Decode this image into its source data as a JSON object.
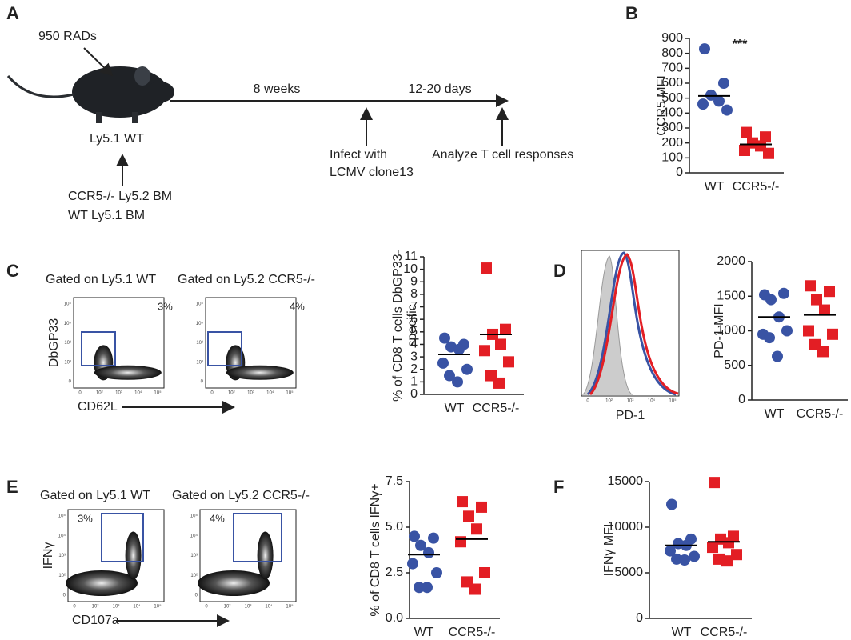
{
  "panel_labels": [
    "A",
    "B",
    "C",
    "D",
    "E",
    "F"
  ],
  "diagram": {
    "rads": "950 RADs",
    "host": "Ly5.1 WT",
    "bone_marrow": [
      "CCR5-/- Ly5.2 BM",
      "WT Ly5.1 BM"
    ],
    "interval1": "8 weeks",
    "interval2": "12-20 days",
    "infect": [
      "Infect with",
      "LCMV clone13"
    ],
    "analyze": "Analyze T cell responses"
  },
  "flow": {
    "ticks": [
      "0",
      "10²",
      "10³",
      "10⁴",
      "10⁵"
    ],
    "C": {
      "gates": [
        "Gated on Ly5.1 WT",
        "Gated on Ly5.2 CCR5-/-"
      ],
      "percents": [
        "3%",
        "4%"
      ],
      "y_label": "DbGP33",
      "x_label": "CD62L"
    },
    "D": {
      "x_label": "PD-1"
    },
    "E": {
      "gates": [
        "Gated on Ly5.1 WT",
        "Gated on Ly5.2 CCR5-/-"
      ],
      "percents": [
        "3%",
        "4%"
      ],
      "y_label": "IFNγ",
      "x_label": "CD107a"
    }
  },
  "chart_data": [
    {
      "type": "dot",
      "y_label": [
        "CCR5 MFI"
      ],
      "annotation": "***",
      "categories": [
        "WT",
        "CCR5-/-"
      ],
      "groups": [
        {
          "color": "#3953a4",
          "marker": "circle",
          "values": [
            830,
            600,
            520,
            480,
            460,
            420
          ],
          "mean": 515
        },
        {
          "color": "#e31e24",
          "marker": "square",
          "values": [
            270,
            240,
            200,
            180,
            150,
            130
          ],
          "mean": 190
        }
      ],
      "ylim": [
        0,
        900
      ],
      "yticks": [
        0,
        100,
        200,
        300,
        400,
        500,
        600,
        700,
        800,
        900
      ]
    },
    {
      "type": "dot",
      "y_label": [
        "% of CD8 T cells DbGP33-",
        "specific"
      ],
      "categories": [
        "WT",
        "CCR5-/-"
      ],
      "groups": [
        {
          "color": "#3953a4",
          "marker": "circle",
          "values": [
            4.5,
            4.0,
            3.8,
            3.6,
            2.5,
            2.0,
            1.5,
            1.0
          ],
          "mean": 3.2
        },
        {
          "color": "#e31e24",
          "marker": "square",
          "values": [
            10.1,
            5.2,
            4.8,
            4.0,
            3.5,
            2.6,
            1.5,
            0.9
          ],
          "mean": 4.8
        }
      ],
      "ylim": [
        0,
        11
      ],
      "yticks": [
        0,
        1,
        2,
        3,
        4,
        5,
        6,
        7,
        8,
        9,
        10,
        11
      ]
    },
    {
      "type": "dot",
      "y_label": [
        "PD-1 MFI"
      ],
      "categories": [
        "WT",
        "CCR5-/-"
      ],
      "groups": [
        {
          "color": "#3953a4",
          "marker": "circle",
          "values": [
            1520,
            1540,
            1450,
            1200,
            950,
            1000,
            900,
            630
          ],
          "mean": 1200
        },
        {
          "color": "#e31e24",
          "marker": "square",
          "values": [
            1650,
            1570,
            1450,
            1300,
            1000,
            950,
            800,
            700
          ],
          "mean": 1230
        }
      ],
      "ylim": [
        0,
        2000
      ],
      "yticks": [
        0,
        500,
        1000,
        1500,
        2000
      ]
    },
    {
      "type": "dot",
      "y_label": [
        "% of CD8 T cells IFNγ+"
      ],
      "categories": [
        "WT",
        "CCR5-/-"
      ],
      "groups": [
        {
          "color": "#3953a4",
          "marker": "circle",
          "values": [
            4.5,
            4.4,
            4.0,
            3.6,
            3.0,
            2.5,
            1.7,
            1.7
          ],
          "mean": 3.5
        },
        {
          "color": "#e31e24",
          "marker": "square",
          "values": [
            6.4,
            6.1,
            5.6,
            4.9,
            4.2,
            2.5,
            2.0,
            1.6
          ],
          "mean": 4.35
        }
      ],
      "ylim": [
        0,
        7.5
      ],
      "yticks": [
        {
          "value": 0,
          "label": "0.0"
        },
        2.5,
        {
          "value": 5,
          "label": "5.0"
        },
        7.5
      ]
    },
    {
      "type": "dot",
      "y_label": [
        "IFNγ MFI"
      ],
      "categories": [
        "WT",
        "CCR5-/-"
      ],
      "groups": [
        {
          "color": "#3953a4",
          "marker": "circle",
          "values": [
            12500,
            8700,
            8200,
            8000,
            7400,
            6800,
            6500,
            6400
          ],
          "mean": 8000
        },
        {
          "color": "#e31e24",
          "marker": "square",
          "values": [
            14900,
            9000,
            8700,
            8300,
            7800,
            7000,
            6500,
            6300
          ],
          "mean": 8400
        }
      ],
      "ylim": [
        0,
        15000
      ],
      "yticks": [
        0,
        5000,
        10000,
        15000
      ]
    }
  ]
}
